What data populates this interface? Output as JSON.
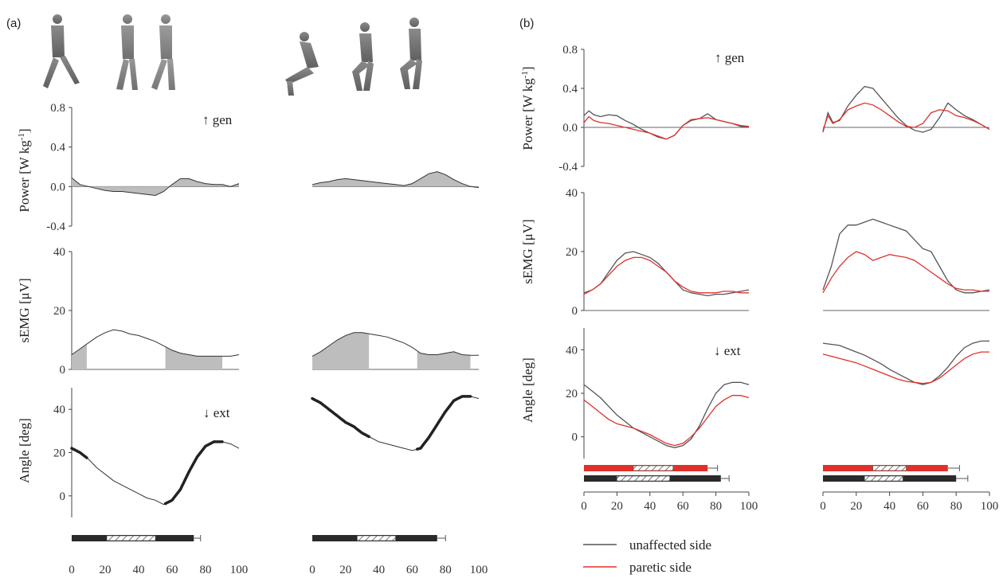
{
  "figure": {
    "panel_a_label": "(a)",
    "panel_b_label": "(b)",
    "power_label": "Power [W kg",
    "power_label_sup": "-1",
    "power_label_end": "]",
    "semg_label": "sEMG [μV]",
    "angle_label": "Angle [deg]",
    "gen_annotation": "↑ gen",
    "ext_annotation": "↓ ext"
  },
  "legend": {
    "unaffected": "unaffected side",
    "paretic": "paretic side"
  },
  "colors": {
    "unaffected": "#555555",
    "paretic": "#e0302a",
    "shade": "#bdbdbd",
    "bar_dark": "#2a2a2a",
    "bar_red": "#e0302a"
  },
  "chart_data": [
    {
      "id": "a-power-walk",
      "type": "area",
      "x": [
        0,
        2,
        5,
        10,
        15,
        20,
        25,
        30,
        35,
        40,
        45,
        50,
        55,
        60,
        65,
        70,
        75,
        80,
        85,
        90,
        95,
        100
      ],
      "values": [
        0.09,
        0.06,
        0.02,
        0.0,
        -0.02,
        -0.04,
        -0.05,
        -0.05,
        -0.06,
        -0.07,
        -0.08,
        -0.09,
        -0.05,
        0.02,
        0.08,
        0.08,
        0.05,
        0.03,
        0.02,
        0.02,
        0.0,
        0.03
      ],
      "ylim": [
        -0.4,
        0.8
      ],
      "yticks": [
        "0.8",
        "0.4",
        "0.0",
        "-0.4"
      ],
      "xlim": [
        0,
        100
      ]
    },
    {
      "id": "a-power-sts",
      "type": "area",
      "x": [
        0,
        5,
        10,
        15,
        20,
        25,
        30,
        35,
        40,
        45,
        50,
        55,
        60,
        65,
        70,
        75,
        80,
        85,
        90,
        95,
        100
      ],
      "values": [
        0.02,
        0.04,
        0.05,
        0.07,
        0.08,
        0.07,
        0.06,
        0.05,
        0.04,
        0.03,
        0.02,
        0.01,
        0.03,
        0.08,
        0.13,
        0.15,
        0.12,
        0.07,
        0.03,
        0.0,
        -0.01
      ],
      "ylim": [
        -0.4,
        0.8
      ],
      "xlim": [
        0,
        100
      ]
    },
    {
      "id": "a-semg-walk",
      "type": "area",
      "x": [
        0,
        5,
        10,
        15,
        20,
        25,
        30,
        35,
        40,
        45,
        50,
        55,
        60,
        65,
        70,
        75,
        80,
        85,
        90,
        95,
        100
      ],
      "values": [
        5,
        7,
        9,
        11,
        12.5,
        13.5,
        13,
        12,
        11.5,
        10.5,
        9.5,
        8,
        6.5,
        5.5,
        5,
        4.5,
        4.5,
        4.5,
        4.5,
        4.5,
        5
      ],
      "shaded_ranges": [
        [
          0,
          9
        ],
        [
          56,
          90
        ]
      ],
      "ylim": [
        0,
        40
      ],
      "yticks": [
        "40",
        "20",
        "0"
      ],
      "xlim": [
        0,
        100
      ]
    },
    {
      "id": "a-semg-sts",
      "type": "area",
      "x": [
        0,
        5,
        10,
        15,
        20,
        25,
        30,
        35,
        40,
        45,
        50,
        55,
        60,
        65,
        70,
        75,
        80,
        85,
        90,
        95,
        100
      ],
      "values": [
        4.5,
        6,
        8,
        10,
        11.5,
        12.5,
        12.5,
        12,
        11.5,
        11,
        10,
        9,
        7.5,
        5.5,
        5,
        5,
        5.5,
        6,
        5,
        4.8,
        4.8
      ],
      "shaded_ranges": [
        [
          0,
          34
        ],
        [
          63,
          95
        ]
      ],
      "ylim": [
        0,
        40
      ],
      "xlim": [
        0,
        100
      ]
    },
    {
      "id": "a-angle-walk",
      "type": "line",
      "x": [
        0,
        5,
        10,
        15,
        20,
        25,
        30,
        35,
        40,
        45,
        50,
        55,
        60,
        65,
        70,
        75,
        80,
        85,
        90,
        95,
        100
      ],
      "values": [
        22,
        20,
        17,
        13,
        10,
        7,
        5,
        3,
        1,
        -1,
        -2,
        -4,
        -2,
        3,
        11,
        18,
        23,
        25,
        25,
        24,
        22
      ],
      "bold_ranges": [
        [
          0,
          9
        ],
        [
          56,
          90
        ]
      ],
      "ylim": [
        -10,
        50
      ],
      "yticks": [
        "40",
        "20",
        "0"
      ],
      "xlim": [
        0,
        100
      ]
    },
    {
      "id": "a-angle-sts",
      "type": "line",
      "x": [
        0,
        5,
        10,
        15,
        20,
        25,
        30,
        35,
        40,
        45,
        50,
        55,
        60,
        65,
        70,
        75,
        80,
        85,
        90,
        95,
        100
      ],
      "values": [
        45,
        43,
        40,
        37,
        34,
        32,
        29,
        27,
        25,
        24,
        23,
        22,
        21,
        22,
        27,
        33,
        39,
        44,
        46,
        46,
        45
      ],
      "bold_ranges": [
        [
          0,
          34
        ],
        [
          63,
          95
        ]
      ],
      "ylim": [
        -10,
        50
      ],
      "xlim": [
        0,
        100
      ]
    },
    {
      "id": "b-power-walk",
      "type": "line",
      "x": [
        0,
        3,
        6,
        10,
        15,
        20,
        25,
        30,
        35,
        40,
        45,
        50,
        55,
        60,
        65,
        70,
        75,
        80,
        85,
        90,
        95,
        100
      ],
      "series": [
        {
          "name": "unaffected side",
          "values": [
            0.12,
            0.17,
            0.13,
            0.11,
            0.13,
            0.12,
            0.07,
            0.03,
            -0.02,
            -0.06,
            -0.1,
            -0.12,
            -0.08,
            0.02,
            0.07,
            0.09,
            0.14,
            0.08,
            0.06,
            0.04,
            0.01,
            0.0
          ]
        },
        {
          "name": "paretic side",
          "values": [
            0.05,
            0.11,
            0.07,
            0.05,
            0.04,
            0.02,
            0.0,
            -0.02,
            -0.04,
            -0.06,
            -0.09,
            -0.12,
            -0.08,
            0.02,
            0.08,
            0.09,
            0.1,
            0.08,
            0.06,
            0.04,
            0.02,
            0.01
          ]
        }
      ],
      "ylim": [
        -0.4,
        0.8
      ],
      "yticks": [
        "0.8",
        "0.4",
        "0.0",
        "-0.4"
      ],
      "xlim": [
        0,
        100
      ]
    },
    {
      "id": "b-power-sts",
      "type": "line",
      "x": [
        0,
        3,
        6,
        10,
        15,
        20,
        25,
        30,
        35,
        40,
        45,
        50,
        55,
        60,
        65,
        70,
        75,
        80,
        85,
        90,
        95,
        100
      ],
      "series": [
        {
          "name": "unaffected side",
          "values": [
            -0.05,
            0.15,
            0.05,
            0.07,
            0.22,
            0.33,
            0.42,
            0.4,
            0.3,
            0.2,
            0.1,
            0.02,
            -0.03,
            -0.05,
            -0.02,
            0.1,
            0.25,
            0.18,
            0.12,
            0.08,
            0.03,
            -0.02
          ]
        },
        {
          "name": "paretic side",
          "values": [
            -0.03,
            0.12,
            0.04,
            0.08,
            0.18,
            0.22,
            0.25,
            0.23,
            0.18,
            0.12,
            0.06,
            0.01,
            0.0,
            0.04,
            0.15,
            0.18,
            0.17,
            0.12,
            0.1,
            0.07,
            0.03,
            -0.02
          ]
        }
      ],
      "ylim": [
        -0.4,
        0.8
      ],
      "xlim": [
        0,
        100
      ]
    },
    {
      "id": "b-semg-walk",
      "type": "line",
      "x": [
        0,
        5,
        10,
        15,
        20,
        25,
        30,
        35,
        40,
        45,
        50,
        55,
        60,
        65,
        70,
        75,
        80,
        85,
        90,
        95,
        100
      ],
      "series": [
        {
          "name": "unaffected side",
          "values": [
            6,
            7,
            9,
            13,
            17,
            19.5,
            20,
            19,
            18,
            16,
            13,
            10,
            7,
            6,
            5.5,
            5,
            5.5,
            5.5,
            6,
            6.5,
            7
          ]
        },
        {
          "name": "paretic side",
          "values": [
            5.5,
            7,
            9,
            12,
            15,
            17,
            18,
            18,
            17,
            15,
            13,
            10,
            8,
            6.5,
            6,
            6,
            6,
            6.5,
            6.5,
            6,
            6
          ]
        }
      ],
      "ylim": [
        0,
        40
      ],
      "yticks": [
        "40",
        "20",
        "0"
      ],
      "xlim": [
        0,
        100
      ]
    },
    {
      "id": "b-semg-sts",
      "type": "line",
      "x": [
        0,
        5,
        10,
        15,
        20,
        25,
        30,
        35,
        40,
        45,
        50,
        55,
        60,
        65,
        70,
        75,
        80,
        85,
        90,
        95,
        100
      ],
      "series": [
        {
          "name": "unaffected side",
          "values": [
            7,
            15,
            26,
            29,
            29,
            30,
            31,
            30,
            29,
            28,
            27,
            24,
            21,
            20,
            15,
            10,
            7,
            6,
            6,
            6.5,
            7
          ]
        },
        {
          "name": "paretic side",
          "values": [
            6,
            11,
            15,
            18,
            20,
            19,
            17,
            18,
            19,
            18.5,
            18,
            17,
            15,
            13,
            11,
            9,
            7.5,
            7,
            7,
            6.5,
            6.5
          ]
        }
      ],
      "ylim": [
        0,
        40
      ],
      "xlim": [
        0,
        100
      ]
    },
    {
      "id": "b-angle-walk",
      "type": "line",
      "x": [
        0,
        5,
        10,
        15,
        20,
        25,
        30,
        35,
        40,
        45,
        50,
        55,
        60,
        65,
        70,
        75,
        80,
        85,
        90,
        95,
        100
      ],
      "series": [
        {
          "name": "unaffected side",
          "values": [
            24,
            21,
            18,
            14,
            10,
            7,
            4,
            2,
            0,
            -2,
            -4,
            -5,
            -4,
            -1,
            5,
            13,
            20,
            24,
            25,
            25,
            24
          ]
        },
        {
          "name": "paretic side",
          "values": [
            17,
            14,
            11,
            8,
            6,
            5,
            4,
            2.5,
            1,
            -1,
            -3,
            -4,
            -3,
            0,
            4,
            9,
            14,
            17,
            19,
            19,
            18
          ]
        }
      ],
      "ylim": [
        -10,
        50
      ],
      "yticks": [
        "40",
        "20",
        "0"
      ],
      "xlim": [
        0,
        100
      ]
    },
    {
      "id": "b-angle-sts",
      "type": "line",
      "x": [
        0,
        5,
        10,
        15,
        20,
        25,
        30,
        35,
        40,
        45,
        50,
        55,
        60,
        65,
        70,
        75,
        80,
        85,
        90,
        95,
        100
      ],
      "series": [
        {
          "name": "unaffected side",
          "values": [
            43,
            42.5,
            42,
            40.5,
            39,
            37.5,
            35.5,
            33.5,
            31,
            29,
            27,
            25,
            24,
            25,
            28,
            32,
            37,
            41,
            43,
            44,
            44
          ]
        },
        {
          "name": "paretic side",
          "values": [
            38,
            37,
            36,
            35,
            34,
            32.5,
            31,
            29.5,
            28,
            26.5,
            25.5,
            25,
            24.5,
            25,
            27,
            30,
            33,
            36,
            38,
            39,
            39
          ]
        }
      ],
      "ylim": [
        -10,
        50
      ],
      "xlim": [
        0,
        100
      ]
    }
  ],
  "phase_bars": [
    {
      "id": "a-walk",
      "rows": [
        {
          "color": "dark",
          "end": 73,
          "hatch": [
            21,
            50
          ],
          "err": 77
        }
      ]
    },
    {
      "id": "a-sts",
      "rows": [
        {
          "color": "dark",
          "end": 75,
          "hatch": [
            27,
            50
          ],
          "err": 80
        }
      ]
    },
    {
      "id": "b-walk",
      "rows": [
        {
          "color": "red",
          "end": 75,
          "hatch": [
            30,
            54
          ],
          "err": 81
        },
        {
          "color": "dark",
          "end": 83,
          "hatch": [
            20,
            52
          ],
          "err": 88
        }
      ]
    },
    {
      "id": "b-sts",
      "rows": [
        {
          "color": "red",
          "end": 75,
          "hatch": [
            30,
            50
          ],
          "err": 82
        },
        {
          "color": "dark",
          "end": 80,
          "hatch": [
            25,
            48
          ],
          "err": 87
        }
      ]
    }
  ],
  "x_ticks": [
    "0",
    "20",
    "40",
    "60",
    "80",
    "100"
  ]
}
